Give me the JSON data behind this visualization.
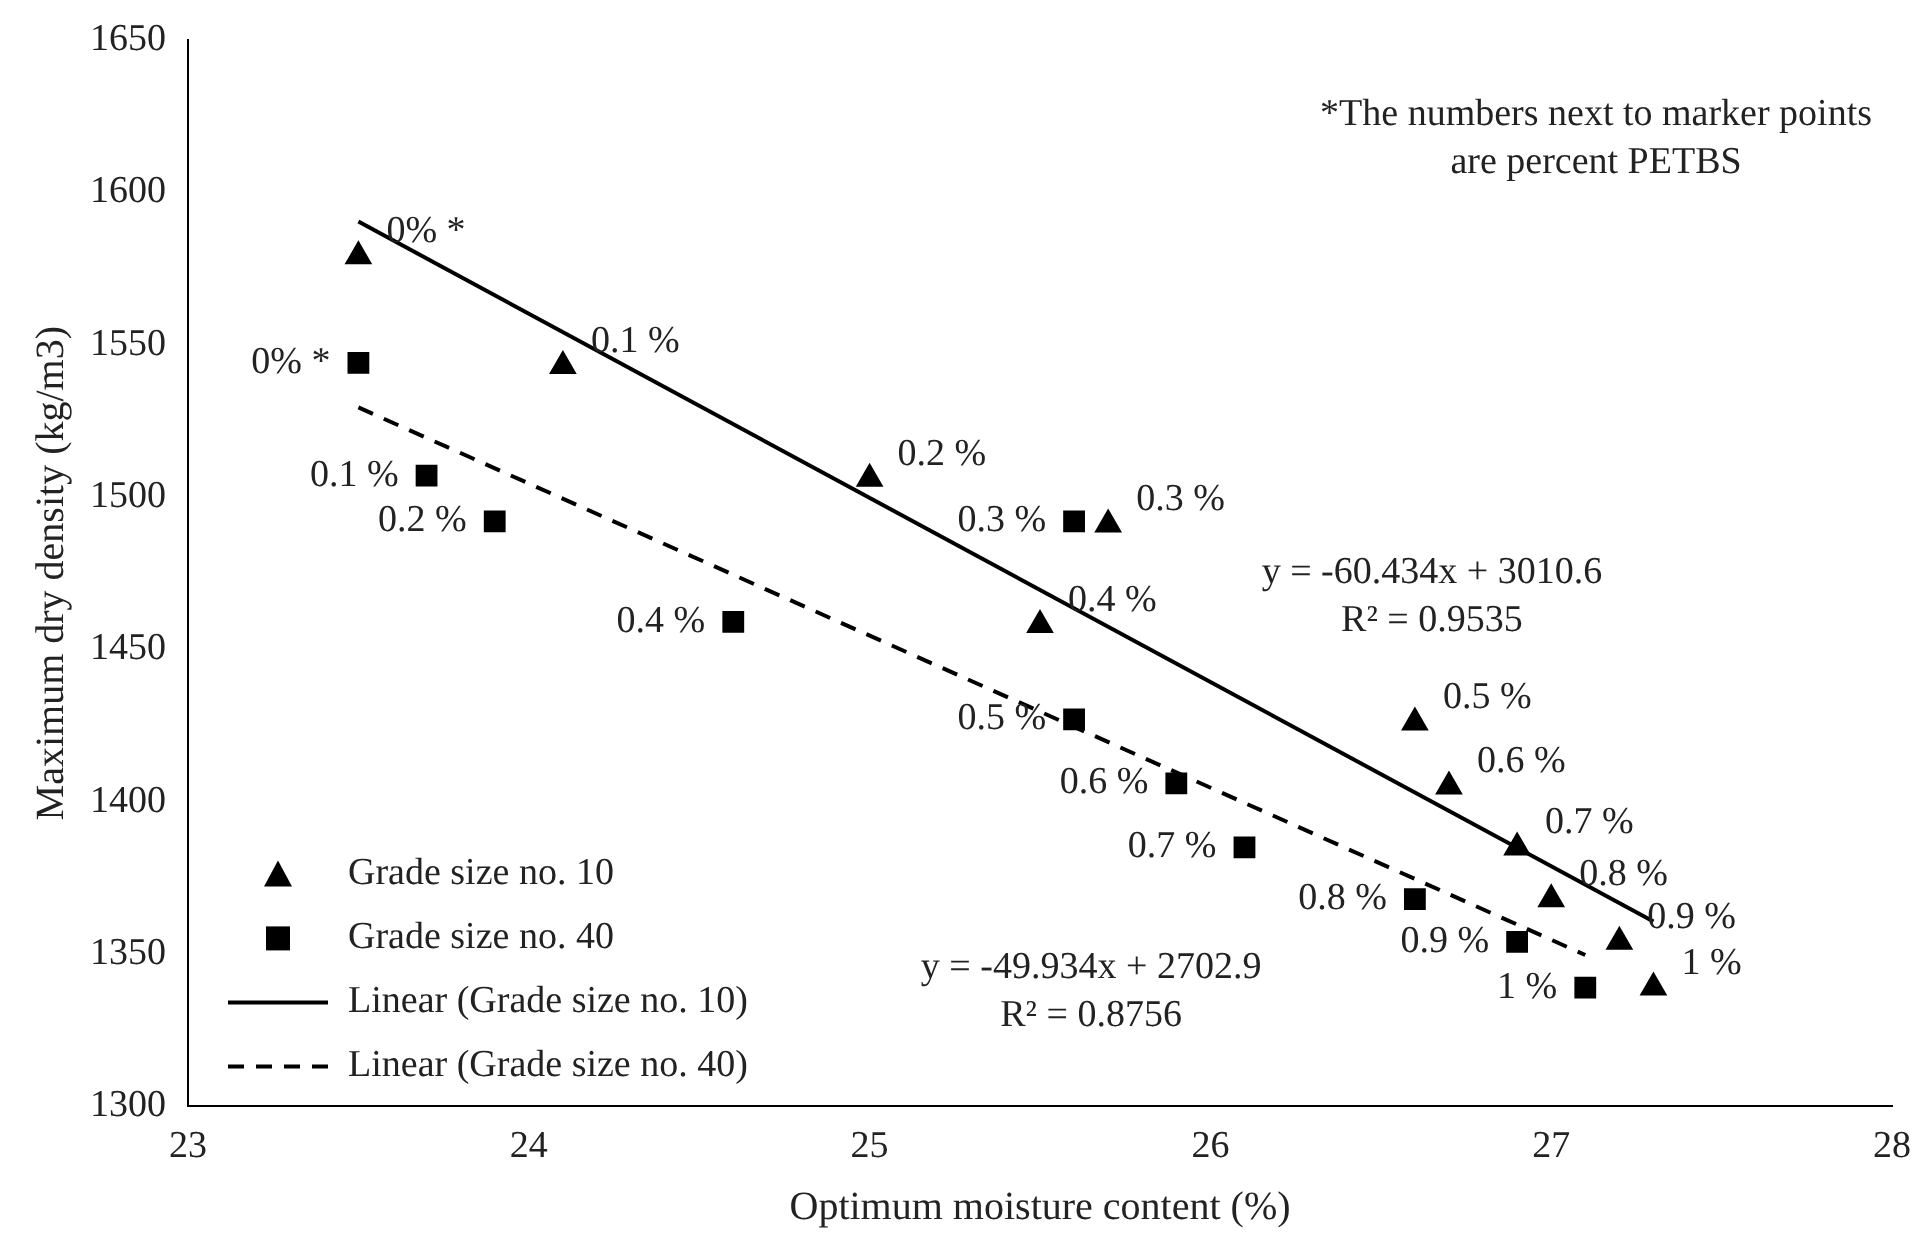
{
  "chart_data": {
    "type": "scatter",
    "xlabel": "Optimum moisture content (%)",
    "ylabel": "Maximum dry density (kg/m3)",
    "xlim": [
      23,
      28
    ],
    "xticks": [
      23,
      24,
      25,
      26,
      27,
      28
    ],
    "ylim": [
      1300,
      1650
    ],
    "yticks": [
      1300,
      1350,
      1400,
      1450,
      1500,
      1550,
      1600,
      1650
    ],
    "grid": false,
    "legend": "bottom left",
    "series": [
      {
        "name": "Grade size no. 10",
        "marker": "triangle",
        "color": "#000000",
        "x": [
          23.5,
          24.1,
          25.0,
          25.7,
          25.5,
          26.6,
          26.7,
          26.9,
          27.0,
          27.2,
          27.3
        ],
        "values": [
          1579,
          1543,
          1506,
          1491,
          1458,
          1426,
          1405,
          1385,
          1368,
          1354,
          1339
        ]
      },
      {
        "name": "Grade size no. 40",
        "marker": "square",
        "color": "#000000",
        "x": [
          23.5,
          23.7,
          23.9,
          25.6,
          24.6,
          25.6,
          25.9,
          26.1,
          26.6,
          26.9,
          27.1
        ],
        "values": [
          1544,
          1507,
          1492,
          1492,
          1459,
          1427,
          1406,
          1385,
          1368,
          1354,
          1339
        ]
      },
      {
        "name": "Linear (Grade size no. 10)",
        "type": "line",
        "marker": "none",
        "line_style": "solid",
        "color": "#000000",
        "x": [
          23.5,
          27.3
        ],
        "values": [
          1590.4,
          1360.7
        ]
      },
      {
        "name": "Linear (Grade size no. 40)",
        "type": "line",
        "marker": "none",
        "line_style": "dashed",
        "color": "#000000",
        "x": [
          23.5,
          27.1
        ],
        "values": [
          1529.4,
          1349.7
        ]
      }
    ],
    "annotations": [
      "*The numbers next to marker points\nare percent PETBS",
      "y = -60.434x + 3010.6\nR² = 0.9535",
      "y = -49.934x + 2702.9\nR² = 0.8756",
      {
        "text": "0% *",
        "x": 23.5,
        "y": 1579
      },
      {
        "text": "0.1 %",
        "x": 24.1,
        "y": 1543
      },
      {
        "text": "0.2 %",
        "x": 25.0,
        "y": 1506
      },
      {
        "text": "0.3 %",
        "x": 25.7,
        "y": 1491
      },
      {
        "text": "0.4 %",
        "x": 25.5,
        "y": 1458
      },
      {
        "text": "0.5 %",
        "x": 26.6,
        "y": 1426
      },
      {
        "text": "0.6 %",
        "x": 26.7,
        "y": 1405
      },
      {
        "text": "0.7 %",
        "x": 26.9,
        "y": 1385
      },
      {
        "text": "0.8 %",
        "x": 27.0,
        "y": 1368
      },
      {
        "text": "0.9 %",
        "x": 27.2,
        "y": 1354
      },
      {
        "text": "1 %",
        "x": 27.3,
        "y": 1339
      },
      {
        "text": "0% *",
        "x": 23.5,
        "y": 1544
      },
      {
        "text": "0.1 %",
        "x": 23.7,
        "y": 1507
      },
      {
        "text": "0.2 %",
        "x": 23.9,
        "y": 1492
      },
      {
        "text": "0.3 %",
        "x": 25.6,
        "y": 1492
      },
      {
        "text": "0.4 %",
        "x": 24.6,
        "y": 1459
      },
      {
        "text": "0.5 %",
        "x": 25.6,
        "y": 1427
      },
      {
        "text": "0.6 %",
        "x": 25.9,
        "y": 1406
      },
      {
        "text": "0.7 %",
        "x": 26.1,
        "y": 1385
      },
      {
        "text": "0.8 %",
        "x": 26.6,
        "y": 1368
      },
      {
        "text": "0.9 %",
        "x": 26.9,
        "y": 1354
      },
      {
        "text": "1 %",
        "x": 27.1,
        "y": 1339
      }
    ]
  }
}
